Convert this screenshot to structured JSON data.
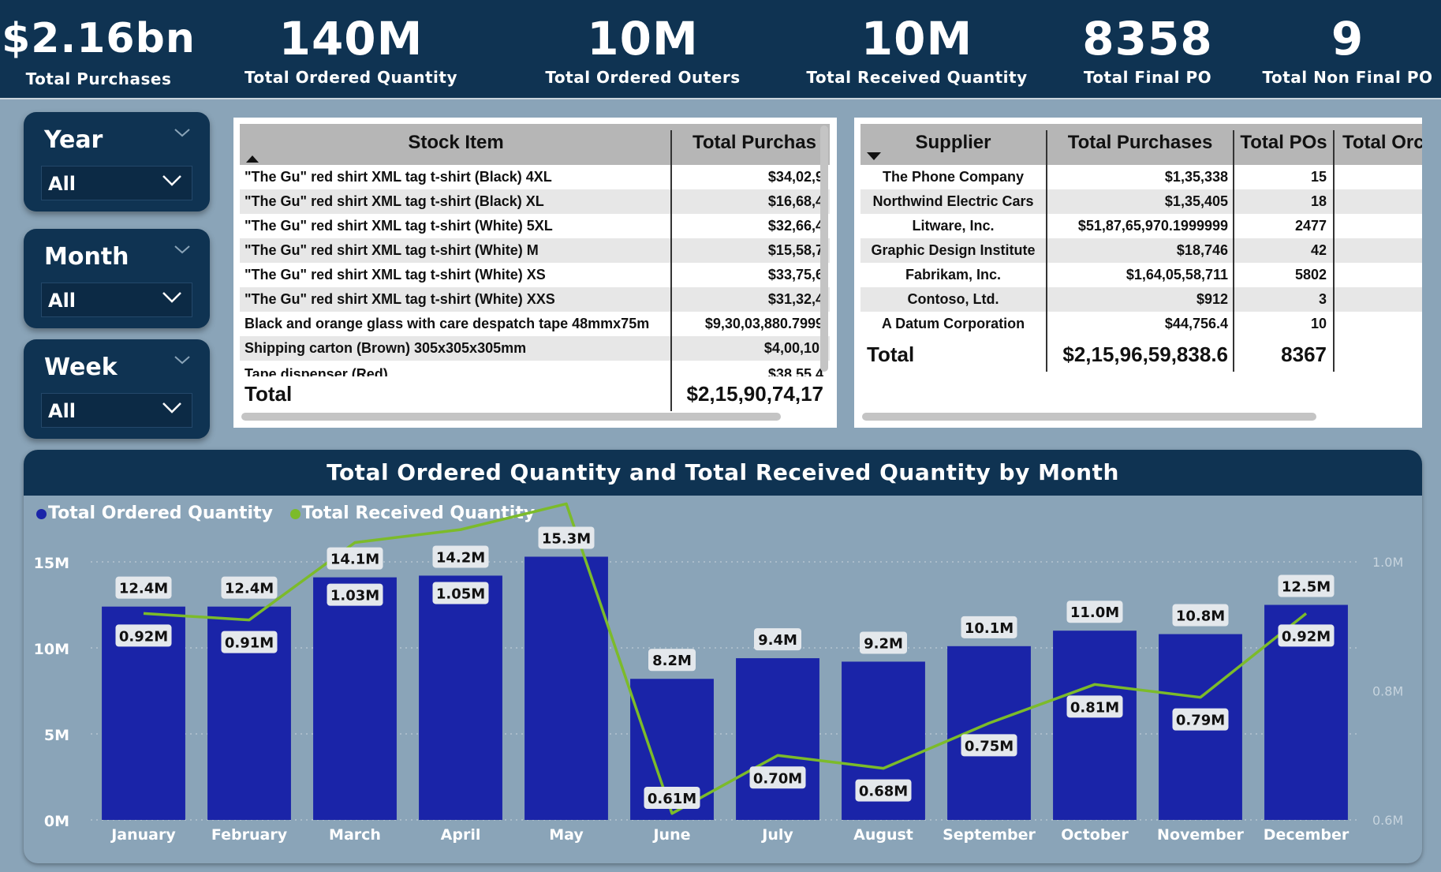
{
  "kpis": [
    {
      "value": "$2.16bn",
      "label": "Total Purchases"
    },
    {
      "value": "140M",
      "label": "Total Ordered Quantity"
    },
    {
      "value": "10M",
      "label": "Total Ordered Outers"
    },
    {
      "value": "10M",
      "label": "Total Received Quantity"
    },
    {
      "value": "8358",
      "label": "Total Final PO"
    },
    {
      "value": "9",
      "label": "Total Non Final PO"
    }
  ],
  "slicers": [
    {
      "title": "Year",
      "value": "All"
    },
    {
      "title": "Month",
      "value": "All"
    },
    {
      "title": "Week",
      "value": "All"
    }
  ],
  "stock_table": {
    "headers": [
      "Stock Item",
      "Total Purchas"
    ],
    "rows": [
      [
        "\"The Gu\" red shirt XML tag t-shirt (Black) 4XL",
        "$34,02,9"
      ],
      [
        "\"The Gu\" red shirt XML tag t-shirt (Black) XL",
        "$16,68,4"
      ],
      [
        "\"The Gu\" red shirt XML tag t-shirt (White) 5XL",
        "$32,66,4"
      ],
      [
        "\"The Gu\" red shirt XML tag t-shirt (White) M",
        "$15,58,7"
      ],
      [
        "\"The Gu\" red shirt XML tag t-shirt (White) XS",
        "$33,75,6"
      ],
      [
        "\"The Gu\" red shirt XML tag t-shirt (White) XXS",
        "$31,32,4"
      ],
      [
        "Black and orange glass with care despatch tape 48mmx75m",
        "$9,30,03,880.7999"
      ],
      [
        "Shipping carton (Brown) 305x305x305mm",
        "$4,00,10,"
      ],
      [
        "Tape dispenser (Red)",
        "$38,55,4"
      ]
    ],
    "total": [
      "Total",
      "$2,15,90,74,17"
    ]
  },
  "supplier_table": {
    "headers": [
      "Supplier",
      "Total Purchases",
      "Total POs",
      "Total Orc"
    ],
    "rows": [
      [
        "The Phone Company",
        "$1,35,338",
        "15",
        ""
      ],
      [
        "Northwind Electric Cars",
        "$1,35,405",
        "18",
        ""
      ],
      [
        "Litware, Inc.",
        "$51,87,65,970.1999999",
        "2477",
        ""
      ],
      [
        "Graphic Design Institute",
        "$18,746",
        "42",
        ""
      ],
      [
        "Fabrikam, Inc.",
        "$1,64,05,58,711",
        "5802",
        ""
      ],
      [
        "Contoso, Ltd.",
        "$912",
        "3",
        ""
      ],
      [
        "A Datum Corporation",
        "$44,756.4",
        "10",
        ""
      ]
    ],
    "total": [
      "Total",
      "$2,15,96,59,838.6",
      "8367",
      ""
    ]
  },
  "chart": {
    "title": "Total Ordered Quantity and Total Received Quantity by Month",
    "legend": [
      {
        "name": "Total Ordered Quantity",
        "color": "#1a24a8"
      },
      {
        "name": "Total Received Quantity",
        "color": "#7cbb2a"
      }
    ]
  },
  "chart_data": {
    "type": "bar",
    "title": "Total Ordered Quantity and Total Received Quantity by Month",
    "categories": [
      "January",
      "February",
      "March",
      "April",
      "May",
      "June",
      "July",
      "August",
      "September",
      "October",
      "November",
      "December"
    ],
    "series": [
      {
        "name": "Total Ordered Quantity",
        "type": "bar",
        "axis": "left",
        "values": [
          12.4,
          12.4,
          14.1,
          14.2,
          15.3,
          8.2,
          9.4,
          9.2,
          10.1,
          11.0,
          10.8,
          12.5
        ],
        "labels": [
          "12.4M",
          "12.4M",
          "14.1M",
          "14.2M",
          "15.3M",
          "8.2M",
          "9.4M",
          "9.2M",
          "10.1M",
          "11.0M",
          "10.8M",
          "12.5M"
        ]
      },
      {
        "name": "Total Received Quantity",
        "type": "line",
        "axis": "right",
        "values": [
          0.92,
          0.91,
          1.03,
          1.05,
          1.09,
          0.61,
          0.7,
          0.68,
          0.75,
          0.81,
          0.79,
          0.92
        ],
        "labels": [
          "0.92M",
          "0.91M",
          "1.03M",
          "1.05M",
          "",
          "0.61M",
          "0.70M",
          "0.68M",
          "0.75M",
          "0.81M",
          "0.79M",
          "0.92M"
        ]
      }
    ],
    "y_left": {
      "ticks": [
        0,
        5,
        10,
        15
      ],
      "tick_labels": [
        "0M",
        "5M",
        "10M",
        "15M"
      ],
      "range": [
        0,
        15
      ]
    },
    "y_right": {
      "ticks": [
        0.6,
        0.8,
        1.0
      ],
      "tick_labels": [
        "0.6M",
        "0.8M",
        "1.0M"
      ],
      "range": [
        0.6,
        1.0
      ]
    },
    "grid": true,
    "legend_position": "top-left"
  }
}
